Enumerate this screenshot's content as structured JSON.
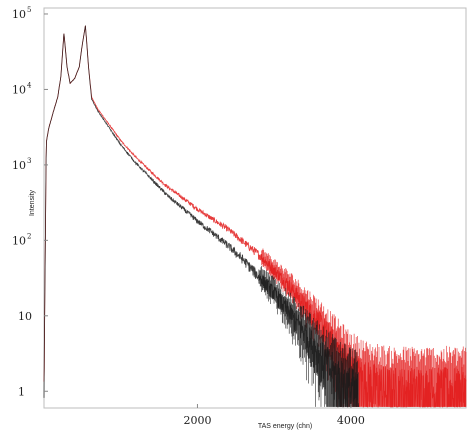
{
  "chart_data": {
    "type": "line",
    "title": "",
    "xlabel": "TAS energy (chn)",
    "ylabel": "Intensity",
    "yscale": "log",
    "xlim": [
      0,
      5500
    ],
    "ylim": [
      0.6,
      120000
    ],
    "grid": false,
    "legend": "none",
    "x_ticks": [
      {
        "value": 2000,
        "label": "2000"
      },
      {
        "value": 4000,
        "label": "4000"
      }
    ],
    "y_ticks": [
      {
        "value": 1,
        "label": "1",
        "exp": ""
      },
      {
        "value": 10,
        "label": "10",
        "exp": ""
      },
      {
        "value": 100,
        "label": "10",
        "exp": "2"
      },
      {
        "value": 1000,
        "label": "10",
        "exp": "3"
      },
      {
        "value": 10000,
        "label": "10",
        "exp": "4"
      },
      {
        "value": 100000,
        "label": "10",
        "exp": "5"
      }
    ],
    "series": [
      {
        "color": "#e21a1a",
        "x": [
          0,
          30,
          60,
          120,
          180,
          220,
          260,
          300,
          340,
          400,
          460,
          500,
          540,
          580,
          620,
          700,
          800,
          900,
          1000,
          1200,
          1400,
          1600,
          1800,
          2000,
          2200,
          2400,
          2600,
          2800,
          3000,
          3200,
          3400,
          3600,
          3800,
          4000,
          4200,
          4500,
          5000,
          5500
        ],
        "y": [
          1,
          2000,
          3000,
          5000,
          8000,
          15000,
          55000,
          20000,
          12000,
          14000,
          20000,
          40000,
          70000,
          20000,
          8000,
          5500,
          4000,
          2900,
          2100,
          1250,
          800,
          520,
          370,
          260,
          190,
          140,
          95,
          65,
          40,
          25,
          14,
          8,
          4,
          2,
          1.3,
          1,
          1,
          1
        ]
      },
      {
        "color": "#1a1a1a",
        "x": [
          0,
          30,
          60,
          120,
          180,
          220,
          260,
          300,
          340,
          400,
          460,
          500,
          540,
          580,
          620,
          700,
          800,
          900,
          1000,
          1200,
          1400,
          1600,
          1800,
          2000,
          2200,
          2400,
          2600,
          2800,
          3000,
          3200,
          3400,
          3600,
          3800,
          4000,
          4100
        ],
        "y": [
          1,
          2000,
          3000,
          5000,
          8000,
          15000,
          55000,
          20000,
          12000,
          14000,
          20000,
          40000,
          70000,
          20000,
          7500,
          5200,
          3700,
          2600,
          1850,
          1050,
          650,
          400,
          270,
          180,
          125,
          85,
          55,
          33,
          20,
          11,
          6,
          3,
          1.6,
          1,
          0.8
        ]
      }
    ]
  }
}
